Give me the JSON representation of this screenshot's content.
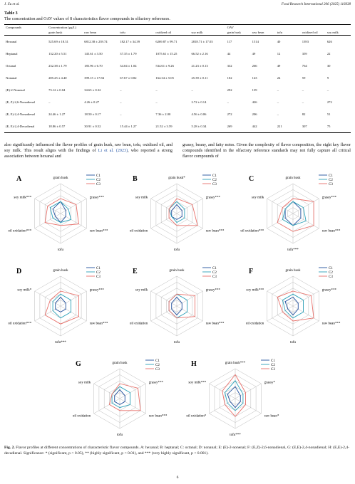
{
  "header": {
    "left": "J. Xu et al.",
    "right": "Food Research International 206 (2025) 116038"
  },
  "table": {
    "label": "Table 3",
    "caption": "The concentration and OAV values of 8 characteristics flavor compounds in olfactory references.",
    "group_headers": [
      "Compounds",
      "Concentration (μg/L)",
      "OAV"
    ],
    "columns": [
      "grain husk",
      "raw bean",
      "tofu",
      "oxidized oil",
      "soy milk"
    ],
    "oav_columns": [
      "grain husk",
      "raw bean",
      "tofu",
      "oxidized oil",
      "soy milk"
    ],
    "rows": [
      [
        "Hexanal",
        "525.69 ± 18.31",
        "6812.38 ± 239.74",
        "182.17 ± 34.39",
        "6269.87 ± 99.71",
        "2818.71 ± 17.03",
        "117",
        "1514",
        "40",
        "1393",
        "626"
      ],
      [
        "Heptanal",
        "132.20 ± 5.51",
        "145.61 ± 3.50",
        "37.35 ± 1.79",
        "1075.61 ± 15.25",
        "66.52 ± 2.16",
        "44",
        "49",
        "12",
        "359",
        "22"
      ],
      [
        "Octanal",
        "232.38 ± 1.79",
        "185.96 ± 6.70",
        "34.04 ± 1.04",
        "534.61 ± 9.26",
        "21.23 ± 0.13",
        "332",
        "266",
        "49",
        "764",
        "30"
      ],
      [
        "Nonanal",
        "285.25 ± 4.40",
        "399.15 ± 17.84",
        "67.67 ± 0.82",
        "164.34 ± 5.05",
        "25.39 ± 0.11",
        "102",
        "143",
        "24",
        "59",
        "9"
      ],
      [
        "(E)-2-Nonenal",
        "73.12 ± 0.04",
        "34.65 ± 0.32",
        "–",
        "–",
        "–",
        "292",
        "139",
        "–",
        "–",
        "–"
      ],
      [
        "(E, Z)-2,6-Nonadienal",
        "–",
        "4.26 ± 0.27",
        "–",
        "–",
        "2.72 ± 0.14",
        "–",
        "426",
        "–",
        "–",
        "272"
      ],
      [
        "(E, E)-2,4-Nonadienal",
        "24.46 ± 1.27",
        "18.50 ± 0.17",
        "–",
        "7.36 ± 2.00",
        "4.56 ± 0.06",
        "272",
        "206",
        "–",
        "82",
        "51"
      ],
      [
        "(E, E)-2,4-Decadienal",
        "18.86 ± 0.57",
        "30.91 ± 0.52",
        "15.44 ± 1.27",
        "21.52 ± 3.59",
        "5.28 ± 0.34",
        "269",
        "442",
        "221",
        "307",
        "75"
      ]
    ]
  },
  "body": {
    "left": [
      "also significantly influenced the flavor profiles of grain husk, raw bean, tofu, oxidized oil, and soy milk. This result aligns with the findings of ",
      "Li et al. (2023)",
      ", who reported a strong association between hexanal and"
    ],
    "right": "grassy, beany, and fatty notes. Given the complexity of flavor composition, the eight key flavor compounds identified in the olfactory reference standards may not fully capture all critical flavor compounds of"
  },
  "figure": {
    "charts": [
      {
        "type": "radar",
        "label": "A",
        "axes": [
          "grain husk",
          "grassy***",
          "raw bean***",
          "tofu",
          "oil oxidation***",
          "soy milk***"
        ],
        "rlim": [
          0,
          5
        ],
        "series": [
          {
            "name": "C1",
            "color": "#1f4e9c",
            "values": [
              2,
              1,
              1,
              1.5,
              1,
              1.5
            ]
          },
          {
            "name": "C2",
            "color": "#2aa0b8",
            "values": [
              2,
              1.5,
              2,
              1.5,
              1.5,
              2
            ]
          },
          {
            "name": "C3",
            "color": "#e8706a",
            "values": [
              2.5,
              3,
              3.5,
              2,
              3,
              2.5
            ]
          }
        ]
      },
      {
        "type": "radar",
        "label": "B",
        "axes": [
          "grain husk*",
          "grassy***",
          "raw bean***",
          "tofu",
          "oil oxidation",
          "soy milk"
        ],
        "rlim": [
          0,
          5
        ],
        "series": [
          {
            "name": "C1",
            "color": "#1f4e9c",
            "values": [
              1.5,
              1,
              1,
              1,
              1,
              1
            ]
          },
          {
            "name": "C2",
            "color": "#2aa0b8",
            "values": [
              2,
              1.5,
              1.5,
              1.5,
              1,
              1.5
            ]
          },
          {
            "name": "C3",
            "color": "#e8706a",
            "values": [
              2.5,
              3,
              4,
              2,
              1.5,
              1.5
            ]
          }
        ]
      },
      {
        "type": "radar",
        "label": "C",
        "axes": [
          "grain husk",
          "grassy***",
          "raw bean***",
          "tofu***",
          "oil oxidation***",
          "soy milk"
        ],
        "rlim": [
          0,
          5
        ],
        "series": [
          {
            "name": "C1",
            "color": "#1f4e9c",
            "values": [
              2,
              1.5,
              1.5,
              2,
              1.5,
              1.5
            ]
          },
          {
            "name": "C2",
            "color": "#2aa0b8",
            "values": [
              2,
              2,
              2.5,
              2,
              2,
              1.5
            ]
          },
          {
            "name": "C3",
            "color": "#e8706a",
            "values": [
              2.5,
              4,
              4,
              3,
              3,
              2
            ]
          }
        ]
      },
      {
        "type": "radar",
        "label": "D",
        "axes": [
          "grain husk",
          "grassy***",
          "raw bean***",
          "tofu***",
          "oil oxidation***",
          "soy milk*"
        ],
        "rlim": [
          0,
          5
        ],
        "series": [
          {
            "name": "C1",
            "color": "#1f4e9c",
            "values": [
              1.5,
              1,
              1,
              1,
              1,
              1
            ]
          },
          {
            "name": "C2",
            "color": "#2aa0b8",
            "values": [
              2,
              2,
              2,
              2,
              1.5,
              1.5
            ]
          },
          {
            "name": "C3",
            "color": "#e8706a",
            "values": [
              2.5,
              3.5,
              3.5,
              3,
              3,
              2
            ]
          }
        ]
      },
      {
        "type": "radar",
        "label": "E",
        "axes": [
          "grain husk",
          "grassy***",
          "raw bean***",
          "tofu",
          "oil oxidation",
          "soy milk"
        ],
        "rlim": [
          0,
          5
        ],
        "series": [
          {
            "name": "C1",
            "color": "#1f4e9c",
            "values": [
              1.5,
              1,
              1,
              1.5,
              1,
              1
            ]
          },
          {
            "name": "C2",
            "color": "#2aa0b8",
            "values": [
              2,
              2,
              2,
              2,
              1.5,
              1.5
            ]
          },
          {
            "name": "C3",
            "color": "#e8706a",
            "values": [
              2,
              3.5,
              3.5,
              2,
              1.5,
              1.5
            ]
          }
        ]
      },
      {
        "type": "radar",
        "label": "F",
        "axes": [
          "grain husk",
          "grassy***",
          "raw bean***",
          "tofu",
          "oil oxidation",
          "soy milk***"
        ],
        "rlim": [
          0,
          5
        ],
        "series": [
          {
            "name": "C1",
            "color": "#1f4e9c",
            "values": [
              1.5,
              1,
              1,
              1.5,
              1,
              1.5
            ]
          },
          {
            "name": "C2",
            "color": "#2aa0b8",
            "values": [
              2,
              2,
              2,
              2,
              1.5,
              2
            ]
          },
          {
            "name": "C3",
            "color": "#e8706a",
            "values": [
              2.5,
              3.5,
              4,
              2.5,
              2,
              3
            ]
          }
        ]
      },
      {
        "type": "radar",
        "label": "G",
        "axes": [
          "grain husk",
          "grassy***",
          "raw bean***",
          "tofu",
          "oil oxidation",
          "soy milk"
        ],
        "rlim": [
          0,
          5
        ],
        "series": [
          {
            "name": "C1",
            "color": "#1f4e9c",
            "values": [
              1.5,
              1,
              1,
              1,
              1,
              1
            ]
          },
          {
            "name": "C2",
            "color": "#2aa0b8",
            "values": [
              2,
              2,
              2,
              1.5,
              1.5,
              1.5
            ]
          },
          {
            "name": "C3",
            "color": "#e8706a",
            "values": [
              2.5,
              3.5,
              4,
              2,
              2,
              1.5
            ]
          }
        ]
      },
      {
        "type": "radar",
        "label": "H",
        "axes": [
          "grain husk***",
          "grassy*",
          "raw bean*",
          "tofu***",
          "oil oxidation*",
          "soy milk***"
        ],
        "rlim": [
          0,
          5
        ],
        "series": [
          {
            "name": "C1",
            "color": "#1f4e9c",
            "values": [
              2,
              1,
              1,
              1.5,
              1,
              1.5
            ]
          },
          {
            "name": "C2",
            "color": "#2aa0b8",
            "values": [
              3,
              1.5,
              1.5,
              2,
              1.5,
              2
            ]
          },
          {
            "name": "C3",
            "color": "#e8706a",
            "values": [
              4,
              2,
              2,
              3,
              2,
              2.5
            ]
          }
        ]
      }
    ],
    "caption_label": "Fig. 2.",
    "caption": "Flavor profiles at different concentrations of characteristic flavor compounds. A: hexanal; B: heptanal; C: octanal; D: nonanal; E: (E)-2-nonenal; F: (E,Z)-2,6-nonadienal, G: (E,E)-2,4-nonadienal; H: (E,E)-2,4-decadienal. Significance: * (significant, p < 0.05), ** (highly significant, p < 0.01), and *** (very highly significant, p < 0.001)."
  },
  "page_number": "6"
}
